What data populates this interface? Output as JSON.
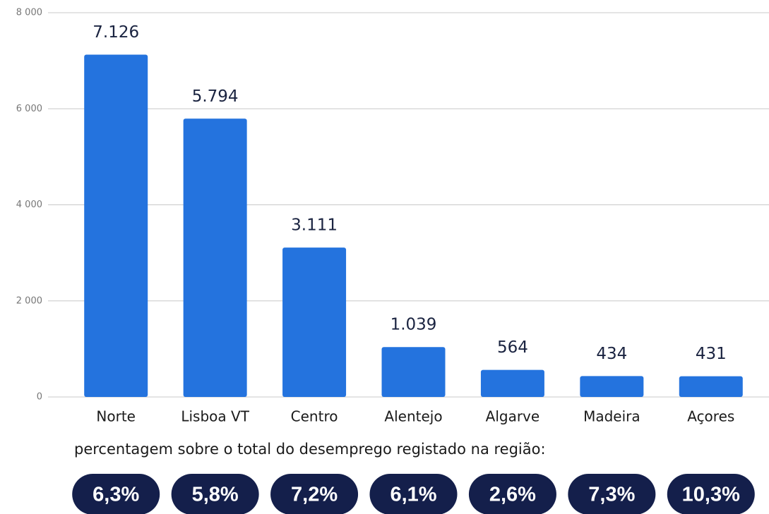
{
  "chart_data": {
    "type": "bar",
    "categories": [
      "Norte",
      "Lisboa VT",
      "Centro",
      "Alentejo",
      "Algarve",
      "Madeira",
      "Açores"
    ],
    "values": [
      7126,
      5794,
      3111,
      1039,
      564,
      434,
      431
    ],
    "value_labels": [
      "7.126",
      "5.794",
      "3.111",
      "1.039",
      "564",
      "434",
      "431"
    ],
    "color": "#2473de",
    "ylim": [
      0,
      8000
    ],
    "yticks": [
      0,
      {
        "value": 2000,
        "label": "2 000"
      },
      {
        "value": 4000,
        "label": "4 000"
      },
      {
        "value": 6000,
        "label": "6 000"
      },
      {
        "value": 8000,
        "label": "8 000"
      }
    ],
    "grid": true,
    "annotation": "percentagem sobre o total do desemprego registado na região:",
    "annotation_values": [
      6.3,
      5.8,
      7.2,
      6.1,
      2.6,
      7.3,
      10.3
    ],
    "annotation_labels": [
      "6,3%",
      "5,8%",
      "7,2%",
      "6,1%",
      "2,6%",
      "7,3%",
      "10,3%"
    ]
  }
}
